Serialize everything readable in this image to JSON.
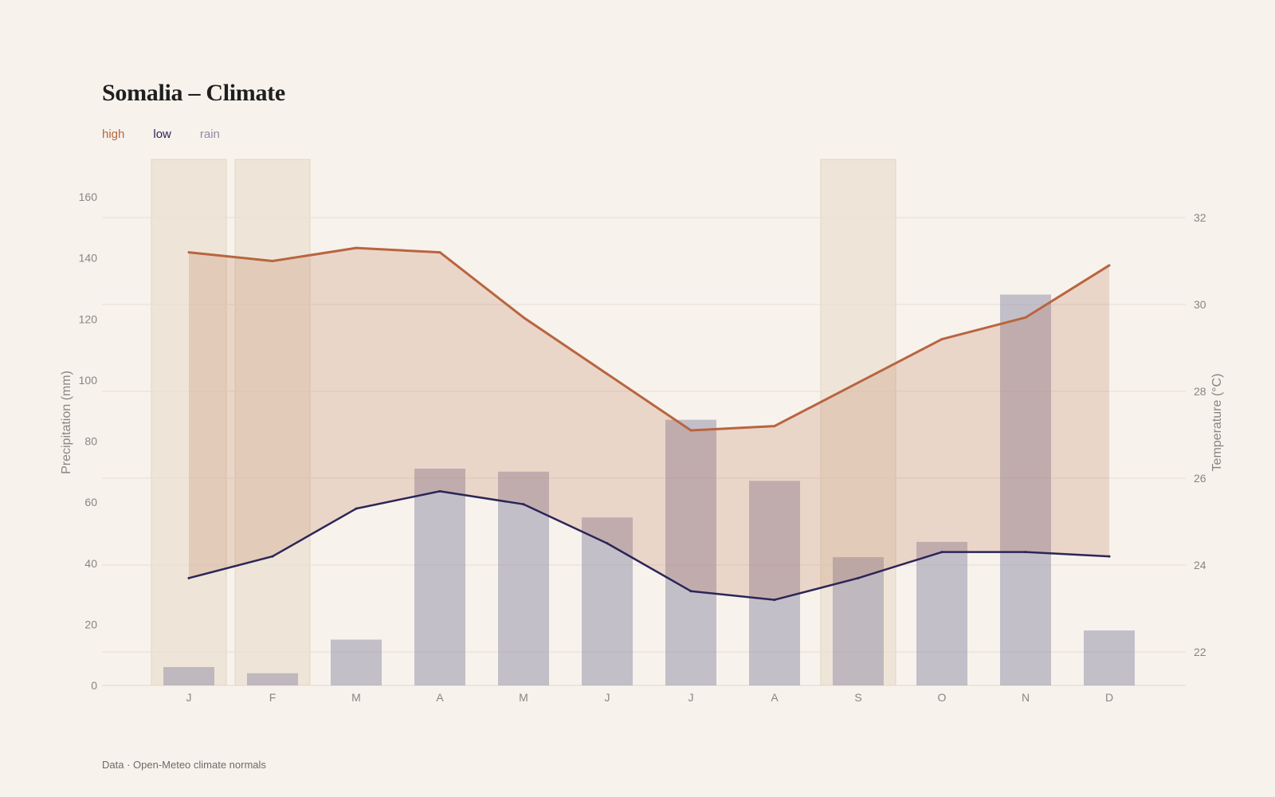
{
  "chart_data": {
    "type": "bar",
    "title": "Somalia – Climate",
    "categories": [
      "J",
      "F",
      "M",
      "A",
      "M",
      "J",
      "J",
      "A",
      "S",
      "O",
      "N",
      "D"
    ],
    "series": [
      {
        "name": "high",
        "type": "line",
        "axis": "right",
        "color": "#b8653f",
        "values": [
          31.2,
          31.0,
          31.3,
          31.2,
          29.7,
          28.4,
          27.1,
          27.2,
          28.2,
          29.2,
          29.7,
          30.9
        ]
      },
      {
        "name": "low",
        "type": "line",
        "axis": "right",
        "color": "#2b2657",
        "values": [
          23.7,
          24.2,
          25.3,
          25.7,
          25.4,
          24.5,
          23.4,
          23.2,
          23.7,
          24.3,
          24.3,
          24.2
        ]
      },
      {
        "name": "rain",
        "type": "bar",
        "axis": "left",
        "color": "#8f8ca4",
        "values": [
          6,
          4,
          15,
          71,
          70,
          55,
          87,
          67,
          42,
          47,
          128,
          18
        ]
      }
    ],
    "highlighted_months": [
      0,
      1,
      8
    ],
    "ylabel": "Precipitation (mm)",
    "y2label": "Temperature (°C)",
    "ylim": [
      0,
      160
    ],
    "y2lim": [
      21.2,
      32
    ],
    "yticks": [
      0,
      20,
      40,
      60,
      80,
      100,
      120,
      140,
      160
    ],
    "y2ticks": [
      22,
      24,
      26,
      28,
      30,
      32
    ],
    "grid": true,
    "legend_position": "top-left",
    "source": "Data · Open-Meteo climate normals"
  }
}
